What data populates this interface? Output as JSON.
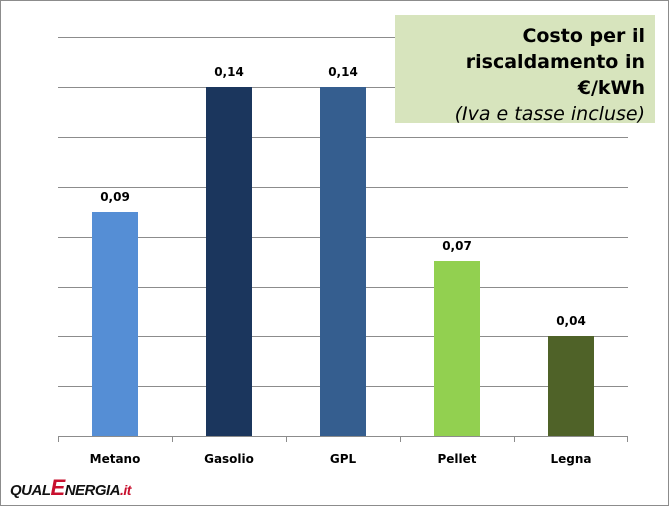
{
  "chart_data": {
    "type": "bar",
    "title": "Costo per il riscaldamento in €/kWh",
    "subtitle": "(Iva e tasse incluse)",
    "categories": [
      "Metano",
      "Gasolio",
      "GPL",
      "Pellet",
      "Legna"
    ],
    "values": [
      0.09,
      0.14,
      0.14,
      0.07,
      0.04
    ],
    "value_labels": [
      "0,09",
      "0,14",
      "0,14",
      "0,07",
      "0,04"
    ],
    "colors": [
      "#558ed5",
      "#1b365d",
      "#355e8f",
      "#92d050",
      "#4f6228"
    ],
    "xlabel": "",
    "ylabel": "",
    "ylim": [
      0,
      0.16
    ],
    "grid": true,
    "legend": "none"
  },
  "title": {
    "line1": "Costo per il",
    "line2": "riscaldamento in €/kWh",
    "line3": "(Iva e tasse incluse)",
    "background": "#d7e4bd"
  },
  "logo": {
    "part1": "QUAL",
    "part2": "E",
    "part3": "NERGIA",
    "part4": ".it"
  }
}
